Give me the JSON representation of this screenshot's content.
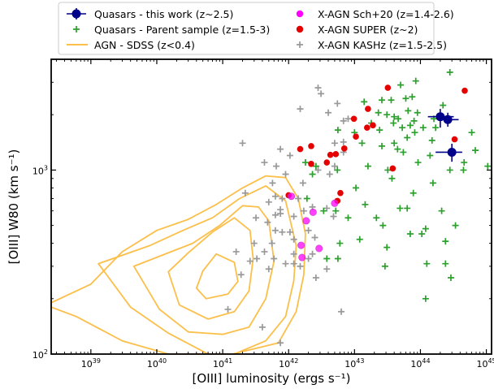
{
  "chart_data": {
    "type": "scatter",
    "title": "",
    "xlabel": "[OIII] luminosity (ergs s⁻¹)",
    "ylabel": "[OIII] W80 (km s⁻¹)",
    "xscale": "log",
    "yscale": "log",
    "xlim": [
      2.5e+38,
      1.2e+45
    ],
    "ylim": [
      100,
      4000
    ],
    "x_ticks": [
      {
        "value": 1e+39,
        "mant": "10",
        "exp": "39"
      },
      {
        "value": 1e+40,
        "mant": "10",
        "exp": "40"
      },
      {
        "value": 1e+41,
        "mant": "10",
        "exp": "41"
      },
      {
        "value": 1e+42,
        "mant": "10",
        "exp": "42"
      },
      {
        "value": 1e+43,
        "mant": "10",
        "exp": "43"
      },
      {
        "value": 1e+44,
        "mant": "10",
        "exp": "44"
      },
      {
        "value": 1e+45,
        "mant": "10",
        "exp": "45"
      }
    ],
    "y_ticks": [
      {
        "value": 100,
        "mant": "10",
        "exp": "2"
      },
      {
        "value": 1000,
        "mant": "10",
        "exp": "3"
      }
    ],
    "legend_position": "top-center",
    "series": [
      {
        "name": "Quasars - this work (z~2.5)",
        "marker": "circle-errorbar",
        "color": "#00008b",
        "points": [
          [
            2e+44,
            1950,
            1.3e+44,
            3.2e+44,
            1700,
            2150
          ],
          [
            2.6e+44,
            1880,
            2e+44,
            3.8e+44,
            1720,
            2050
          ],
          [
            3e+44,
            1250,
            1.7e+44,
            4.3e+44,
            1110,
            1390
          ]
        ]
      },
      {
        "name": "Quasars - Parent sample (z=1.5-3)",
        "marker": "plus",
        "color": "#2ca02c",
        "points": [
          [
            2.8e+44,
            3400
          ],
          [
            8.5e+43,
            3050
          ],
          [
            5e+43,
            2900
          ],
          [
            7.5e+43,
            2500
          ],
          [
            3.6e+43,
            2400
          ],
          [
            1.4e+43,
            2350
          ],
          [
            6e+43,
            2450
          ],
          [
            2.6e+43,
            2400
          ],
          [
            2.2e+44,
            2250
          ],
          [
            6.5e+43,
            2100
          ],
          [
            2.3e+43,
            2050
          ],
          [
            3.1e+43,
            2000
          ],
          [
            4e+43,
            1950
          ],
          [
            1.6e+44,
            1900
          ],
          [
            8e+43,
            1850
          ],
          [
            9e+43,
            2050
          ],
          [
            4.6e+43,
            1900
          ],
          [
            3.9e+43,
            1800
          ],
          [
            1.8e+43,
            1800
          ],
          [
            7e+43,
            1750
          ],
          [
            1.1e+44,
            1700
          ],
          [
            2.4e+43,
            1650
          ],
          [
            5.3e+43,
            1700
          ],
          [
            8.2e+43,
            1600
          ],
          [
            6.3e+43,
            1500
          ],
          [
            1e+43,
            1600
          ],
          [
            5.6e+42,
            1650
          ],
          [
            1.5e+44,
            1450
          ],
          [
            4e+43,
            1400
          ],
          [
            1.3e+43,
            1400
          ],
          [
            2.6e+43,
            1350
          ],
          [
            4.5e+43,
            1300
          ],
          [
            5.5e+43,
            1250
          ],
          [
            1.4e+44,
            1200
          ],
          [
            9.2e+43,
            1100
          ],
          [
            1.05e+45,
            1050
          ],
          [
            6.8e+44,
            1280
          ],
          [
            4.6e+44,
            1100
          ],
          [
            2.8e+44,
            1000
          ],
          [
            3.2e+43,
            1000
          ],
          [
            1.6e+43,
            1050
          ],
          [
            2.6e+42,
            1050
          ],
          [
            5.5e+42,
            1000
          ],
          [
            1.8e+42,
            1100
          ],
          [
            2.3e+42,
            950
          ],
          [
            3.7e+43,
            900
          ],
          [
            4.5e+44,
            1000
          ],
          [
            1.55e+44,
            850
          ],
          [
            7.8e+43,
            750
          ],
          [
            1.05e+43,
            800
          ],
          [
            1.9e+42,
            700
          ],
          [
            1.45e+43,
            650
          ],
          [
            5.2e+42,
            600
          ],
          [
            3.4e+42,
            600
          ],
          [
            2.15e+43,
            550
          ],
          [
            2.7e+43,
            500
          ],
          [
            3.4e+44,
            500
          ],
          [
            1.05e+44,
            450
          ],
          [
            7e+43,
            450
          ],
          [
            8e+42,
            550
          ],
          [
            6.3e+43,
            620
          ],
          [
            4.9e+43,
            620
          ],
          [
            1.2e+44,
            480
          ],
          [
            2.4e+44,
            410
          ],
          [
            2.1e+44,
            600
          ],
          [
            6e+42,
            400
          ],
          [
            3.8e+42,
            330
          ],
          [
            5.6e+42,
            330
          ],
          [
            2.9e+43,
            300
          ],
          [
            2.4e+44,
            310
          ],
          [
            1.25e+44,
            310
          ],
          [
            2.9e+44,
            260
          ],
          [
            1.2e+44,
            200
          ],
          [
            1.2e+43,
            420
          ],
          [
            3.1e+43,
            380
          ],
          [
            6e+44,
            1600
          ],
          [
            1.7e+44,
            1700
          ]
        ]
      },
      {
        "name": "AGN - SDSS (z<0.4)",
        "marker": "contour",
        "color": "#fbbf4a",
        "contours": [
          [
            [
              4e+40,
              228
            ],
            [
              5.6e+40,
              200
            ],
            [
              1.2e+41,
              212
            ],
            [
              1.7e+41,
              248
            ],
            [
              1.5e+41,
              315
            ],
            [
              8e+40,
              350
            ],
            [
              5e+40,
              283
            ]
          ],
          [
            [
              1.5e+40,
              280
            ],
            [
              2.2e+40,
              185
            ],
            [
              6e+40,
              155
            ],
            [
              1.5e+41,
              170
            ],
            [
              2.5e+41,
              220
            ],
            [
              2.9e+41,
              330
            ],
            [
              2.6e+41,
              470
            ],
            [
              1.5e+41,
              550
            ],
            [
              7e+40,
              460
            ],
            [
              3e+40,
              355
            ]
          ],
          [
            [
              4.5e+39,
              300
            ],
            [
              1.1e+40,
              175
            ],
            [
              3e+40,
              132
            ],
            [
              1e+41,
              128
            ],
            [
              2.5e+41,
              140
            ],
            [
              4.5e+41,
              200
            ],
            [
              6e+41,
              320
            ],
            [
              5e+41,
              530
            ],
            [
              3.5e+41,
              630
            ],
            [
              2e+41,
              640
            ],
            [
              9e+40,
              500
            ],
            [
              3.5e+40,
              400
            ]
          ],
          [
            [
              1.3e+39,
              310
            ],
            [
              4e+39,
              180
            ],
            [
              1.5e+40,
              130
            ],
            [
              6e+40,
              100
            ],
            [
              1.5e+41,
              100
            ],
            [
              4.5e+41,
              118
            ],
            [
              9e+41,
              160
            ],
            [
              1.2e+42,
              250
            ],
            [
              1.3e+42,
              390
            ],
            [
              9e+41,
              680
            ],
            [
              4.5e+41,
              820
            ],
            [
              1.8e+41,
              700
            ],
            [
              7e+40,
              550
            ],
            [
              2.5e+40,
              470
            ],
            [
              8e+39,
              390
            ]
          ],
          [
            [
              2.5e+38,
              180
            ],
            [
              6e+38,
              160
            ],
            [
              3e+39,
              118
            ],
            [
              1.5e+40,
              100
            ],
            [
              1.4e+41,
              100
            ],
            [
              7e+41,
              115
            ],
            [
              1.3e+42,
              170
            ],
            [
              1.7e+42,
              270
            ],
            [
              1.8e+42,
              450
            ],
            [
              1.4e+42,
              700
            ],
            [
              9e+41,
              910
            ],
            [
              4.5e+41,
              930
            ],
            [
              2e+41,
              800
            ],
            [
              8e+40,
              650
            ],
            [
              3e+40,
              540
            ],
            [
              1e+40,
              470
            ],
            [
              3e+39,
              360
            ],
            [
              1e+39,
              240
            ],
            [
              2.5e+38,
              190
            ]
          ]
        ]
      },
      {
        "name": "X-AGN Sch+20 (z=1.4-2.6)",
        "marker": "circle",
        "color": "#ff00ff",
        "points": [
          [
            1.1e+42,
            720
          ],
          [
            1.85e+42,
            530
          ],
          [
            5e+42,
            660
          ],
          [
            2.35e+42,
            590
          ],
          [
            1.55e+42,
            390
          ],
          [
            2.9e+42,
            375
          ],
          [
            1.6e+42,
            335
          ]
        ]
      },
      {
        "name": "X-AGN SUPER (z~2)",
        "marker": "circle",
        "color": "#e50000",
        "points": [
          [
            3.2e+43,
            2800
          ],
          [
            4.7e+44,
            2700
          ],
          [
            1.6e+43,
            2150
          ],
          [
            9.8e+42,
            1900
          ],
          [
            1.55e+43,
            1700
          ],
          [
            1.9e+43,
            1750
          ],
          [
            1.5e+42,
            1300
          ],
          [
            2.2e+42,
            1350
          ],
          [
            1.05e+43,
            1520
          ],
          [
            7e+42,
            1310
          ],
          [
            5.2e+42,
            1220
          ],
          [
            3.8e+42,
            1100
          ],
          [
            4.3e+42,
            1210
          ],
          [
            2.2e+42,
            1080
          ],
          [
            3.8e+43,
            1020
          ],
          [
            3.3e+44,
            1470
          ],
          [
            6.1e+42,
            750
          ],
          [
            1e+42,
            730
          ],
          [
            5.5e+42,
            680
          ]
        ]
      },
      {
        "name": "X-AGN KASHz (z=1.5-2.5)",
        "marker": "plus",
        "color": "#999999",
        "points": [
          [
            2.8e+42,
            2800
          ],
          [
            3.1e+42,
            2600
          ],
          [
            5.5e+42,
            2300
          ],
          [
            4e+42,
            2050
          ],
          [
            1.5e+42,
            2150
          ],
          [
            6.8e+42,
            1850
          ],
          [
            8e+42,
            1900
          ],
          [
            2e+41,
            1400
          ],
          [
            7.5e+41,
            1300
          ],
          [
            5e+42,
            1400
          ],
          [
            6.8e+42,
            1420
          ],
          [
            1.05e+42,
            1200
          ],
          [
            6.8e+42,
            1250
          ],
          [
            4.3e+41,
            1100
          ],
          [
            6.5e+41,
            1050
          ],
          [
            9e+41,
            950
          ],
          [
            2.8e+42,
            1000
          ],
          [
            5e+42,
            1050
          ],
          [
            5.7e+41,
            850
          ],
          [
            1.65e+42,
            850
          ],
          [
            4.2e+42,
            950
          ],
          [
            2.2e+41,
            750
          ],
          [
            6.3e+41,
            720
          ],
          [
            8e+41,
            700
          ],
          [
            1.4e+42,
            700
          ],
          [
            5e+41,
            670
          ],
          [
            7.5e+41,
            610
          ],
          [
            3.2e+41,
            550
          ],
          [
            4.8e+41,
            520
          ],
          [
            6.3e+41,
            570
          ],
          [
            7.5e+41,
            580
          ],
          [
            1.2e+42,
            560
          ],
          [
            1.7e+42,
            600
          ],
          [
            2.3e+42,
            630
          ],
          [
            3.8e+42,
            620
          ],
          [
            6.3e+41,
            470
          ],
          [
            8e+41,
            460
          ],
          [
            1.05e+42,
            460
          ],
          [
            2e+42,
            470
          ],
          [
            4.8e+42,
            560
          ],
          [
            3e+41,
            400
          ],
          [
            5.6e+41,
            400
          ],
          [
            1.2e+42,
            420
          ],
          [
            2.5e+42,
            430
          ],
          [
            1.6e+41,
            360
          ],
          [
            4.3e+41,
            360
          ],
          [
            1.2e+42,
            350
          ],
          [
            2.3e+42,
            350
          ],
          [
            2.6e+41,
            320
          ],
          [
            3.3e+41,
            330
          ],
          [
            6e+41,
            330
          ],
          [
            9e+41,
            310
          ],
          [
            1.2e+42,
            310
          ],
          [
            1.9e+41,
            270
          ],
          [
            5e+41,
            290
          ],
          [
            1.5e+42,
            300
          ],
          [
            2.6e+42,
            260
          ],
          [
            1.2e+41,
            175
          ],
          [
            4e+41,
            140
          ],
          [
            7.5e+41,
            115
          ],
          [
            6.3e+42,
            170
          ],
          [
            3.8e+42,
            290
          ],
          [
            2e+42,
            330
          ]
        ]
      }
    ]
  }
}
